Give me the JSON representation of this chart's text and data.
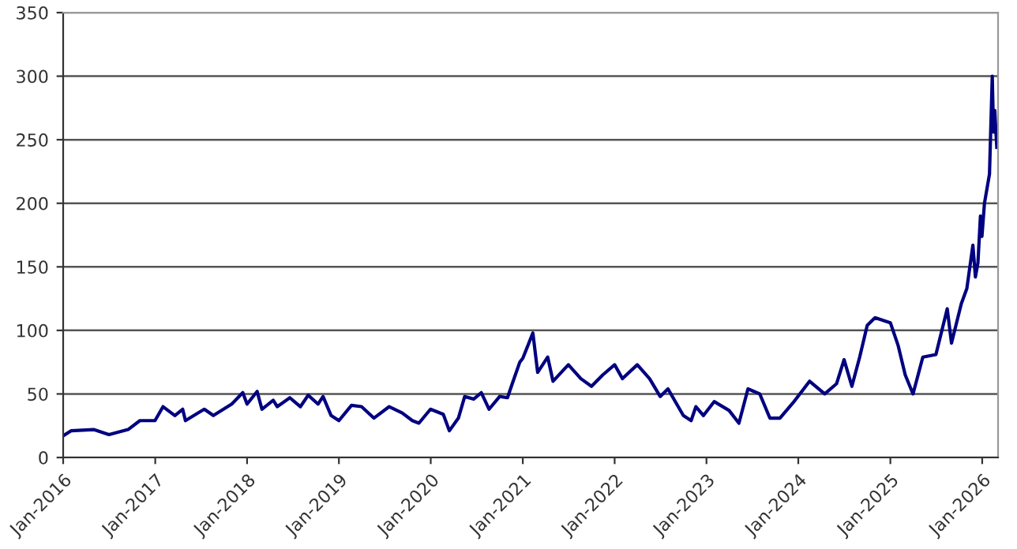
{
  "chart_data": {
    "type": "line",
    "grid": "y",
    "legend": false,
    "marker": "none",
    "line_style": "solid",
    "xlim": [
      "2016-01-01",
      "2026-03-05"
    ],
    "xticks": [
      {
        "value": "2016-01-01",
        "label": "Jan-2016"
      },
      {
        "value": "2017-01-01",
        "label": "Jan-2017"
      },
      {
        "value": "2018-01-01",
        "label": "Jan-2018"
      },
      {
        "value": "2019-01-01",
        "label": "Jan-2019"
      },
      {
        "value": "2020-01-01",
        "label": "Jan-2020"
      },
      {
        "value": "2021-01-01",
        "label": "Jan-2021"
      },
      {
        "value": "2022-01-01",
        "label": "Jan-2022"
      },
      {
        "value": "2023-01-01",
        "label": "Jan-2023"
      },
      {
        "value": "2024-01-01",
        "label": "Jan-2024"
      },
      {
        "value": "2025-01-01",
        "label": "Jan-2025"
      },
      {
        "value": "2026-01-01",
        "label": "Jan-2026"
      }
    ],
    "ylim": [
      0,
      350
    ],
    "yticks": [
      0,
      50,
      100,
      150,
      200,
      250,
      300,
      350
    ],
    "series": [
      {
        "color": "#000080",
        "x": [
          "2016-01-01",
          "2016-02-01",
          "2016-05-01",
          "2016-07-01",
          "2016-09-15",
          "2016-11-01",
          "2016-12-31",
          "2017-02-01",
          "2017-03-20",
          "2017-04-20",
          "2017-05-01",
          "2017-07-15",
          "2017-08-20",
          "2017-11-01",
          "2017-12-15",
          "2018-01-01",
          "2018-02-10",
          "2018-03-01",
          "2018-04-15",
          "2018-05-01",
          "2018-06-20",
          "2018-08-01",
          "2018-09-01",
          "2018-10-10",
          "2018-10-30",
          "2018-12-01",
          "2019-01-01",
          "2019-02-20",
          "2019-04-01",
          "2019-05-20",
          "2019-07-20",
          "2019-09-10",
          "2019-10-20",
          "2019-11-15",
          "2019-12-31",
          "2020-02-20",
          "2020-03-15",
          "2020-04-20",
          "2020-05-15",
          "2020-06-20",
          "2020-07-20",
          "2020-08-20",
          "2020-10-01",
          "2020-11-01",
          "2020-11-20",
          "2020-12-20",
          "2021-01-01",
          "2021-01-25",
          "2021-02-10",
          "2021-03-01",
          "2021-04-10",
          "2021-05-01",
          "2021-07-01",
          "2021-08-20",
          "2021-10-01",
          "2021-11-15",
          "2022-01-01",
          "2022-02-01",
          "2022-04-01",
          "2022-05-20",
          "2022-07-01",
          "2022-08-01",
          "2022-10-01",
          "2022-11-01",
          "2022-11-20",
          "2022-12-20",
          "2023-02-01",
          "2023-04-01",
          "2023-05-10",
          "2023-06-15",
          "2023-08-01",
          "2023-09-10",
          "2023-10-20",
          "2023-12-15",
          "2024-02-15",
          "2024-04-15",
          "2024-06-01",
          "2024-07-01",
          "2024-08-01",
          "2024-09-01",
          "2024-10-01",
          "2024-11-01",
          "2025-01-01",
          "2025-02-01",
          "2025-03-01",
          "2025-04-01",
          "2025-05-10",
          "2025-07-01",
          "2025-08-15",
          "2025-09-01",
          "2025-10-10",
          "2025-11-01",
          "2025-11-25",
          "2025-12-05",
          "2025-12-15",
          "2025-12-25",
          "2025-12-31",
          "2026-01-10",
          "2026-01-30",
          "2026-02-10",
          "2026-02-15",
          "2026-02-20",
          "2026-02-28"
        ],
        "values": [
          17,
          21,
          22,
          18,
          22,
          29,
          29,
          40,
          33,
          38,
          29,
          38,
          33,
          42,
          51,
          42,
          52,
          38,
          45,
          40,
          47,
          40,
          49,
          42,
          48,
          33,
          29,
          41,
          40,
          31,
          40,
          35,
          29,
          27,
          38,
          34,
          21,
          31,
          48,
          46,
          51,
          38,
          48,
          47,
          58,
          75,
          78,
          90,
          98,
          67,
          79,
          60,
          73,
          62,
          56,
          65,
          73,
          62,
          73,
          62,
          48,
          54,
          33,
          29,
          40,
          33,
          44,
          37,
          27,
          54,
          50,
          31,
          31,
          44,
          60,
          50,
          58,
          77,
          56,
          79,
          104,
          110,
          106,
          88,
          65,
          50,
          79,
          81,
          117,
          90,
          121,
          133,
          167,
          142,
          153,
          190,
          174,
          200,
          223,
          300,
          256,
          273,
          244
        ]
      }
    ]
  }
}
